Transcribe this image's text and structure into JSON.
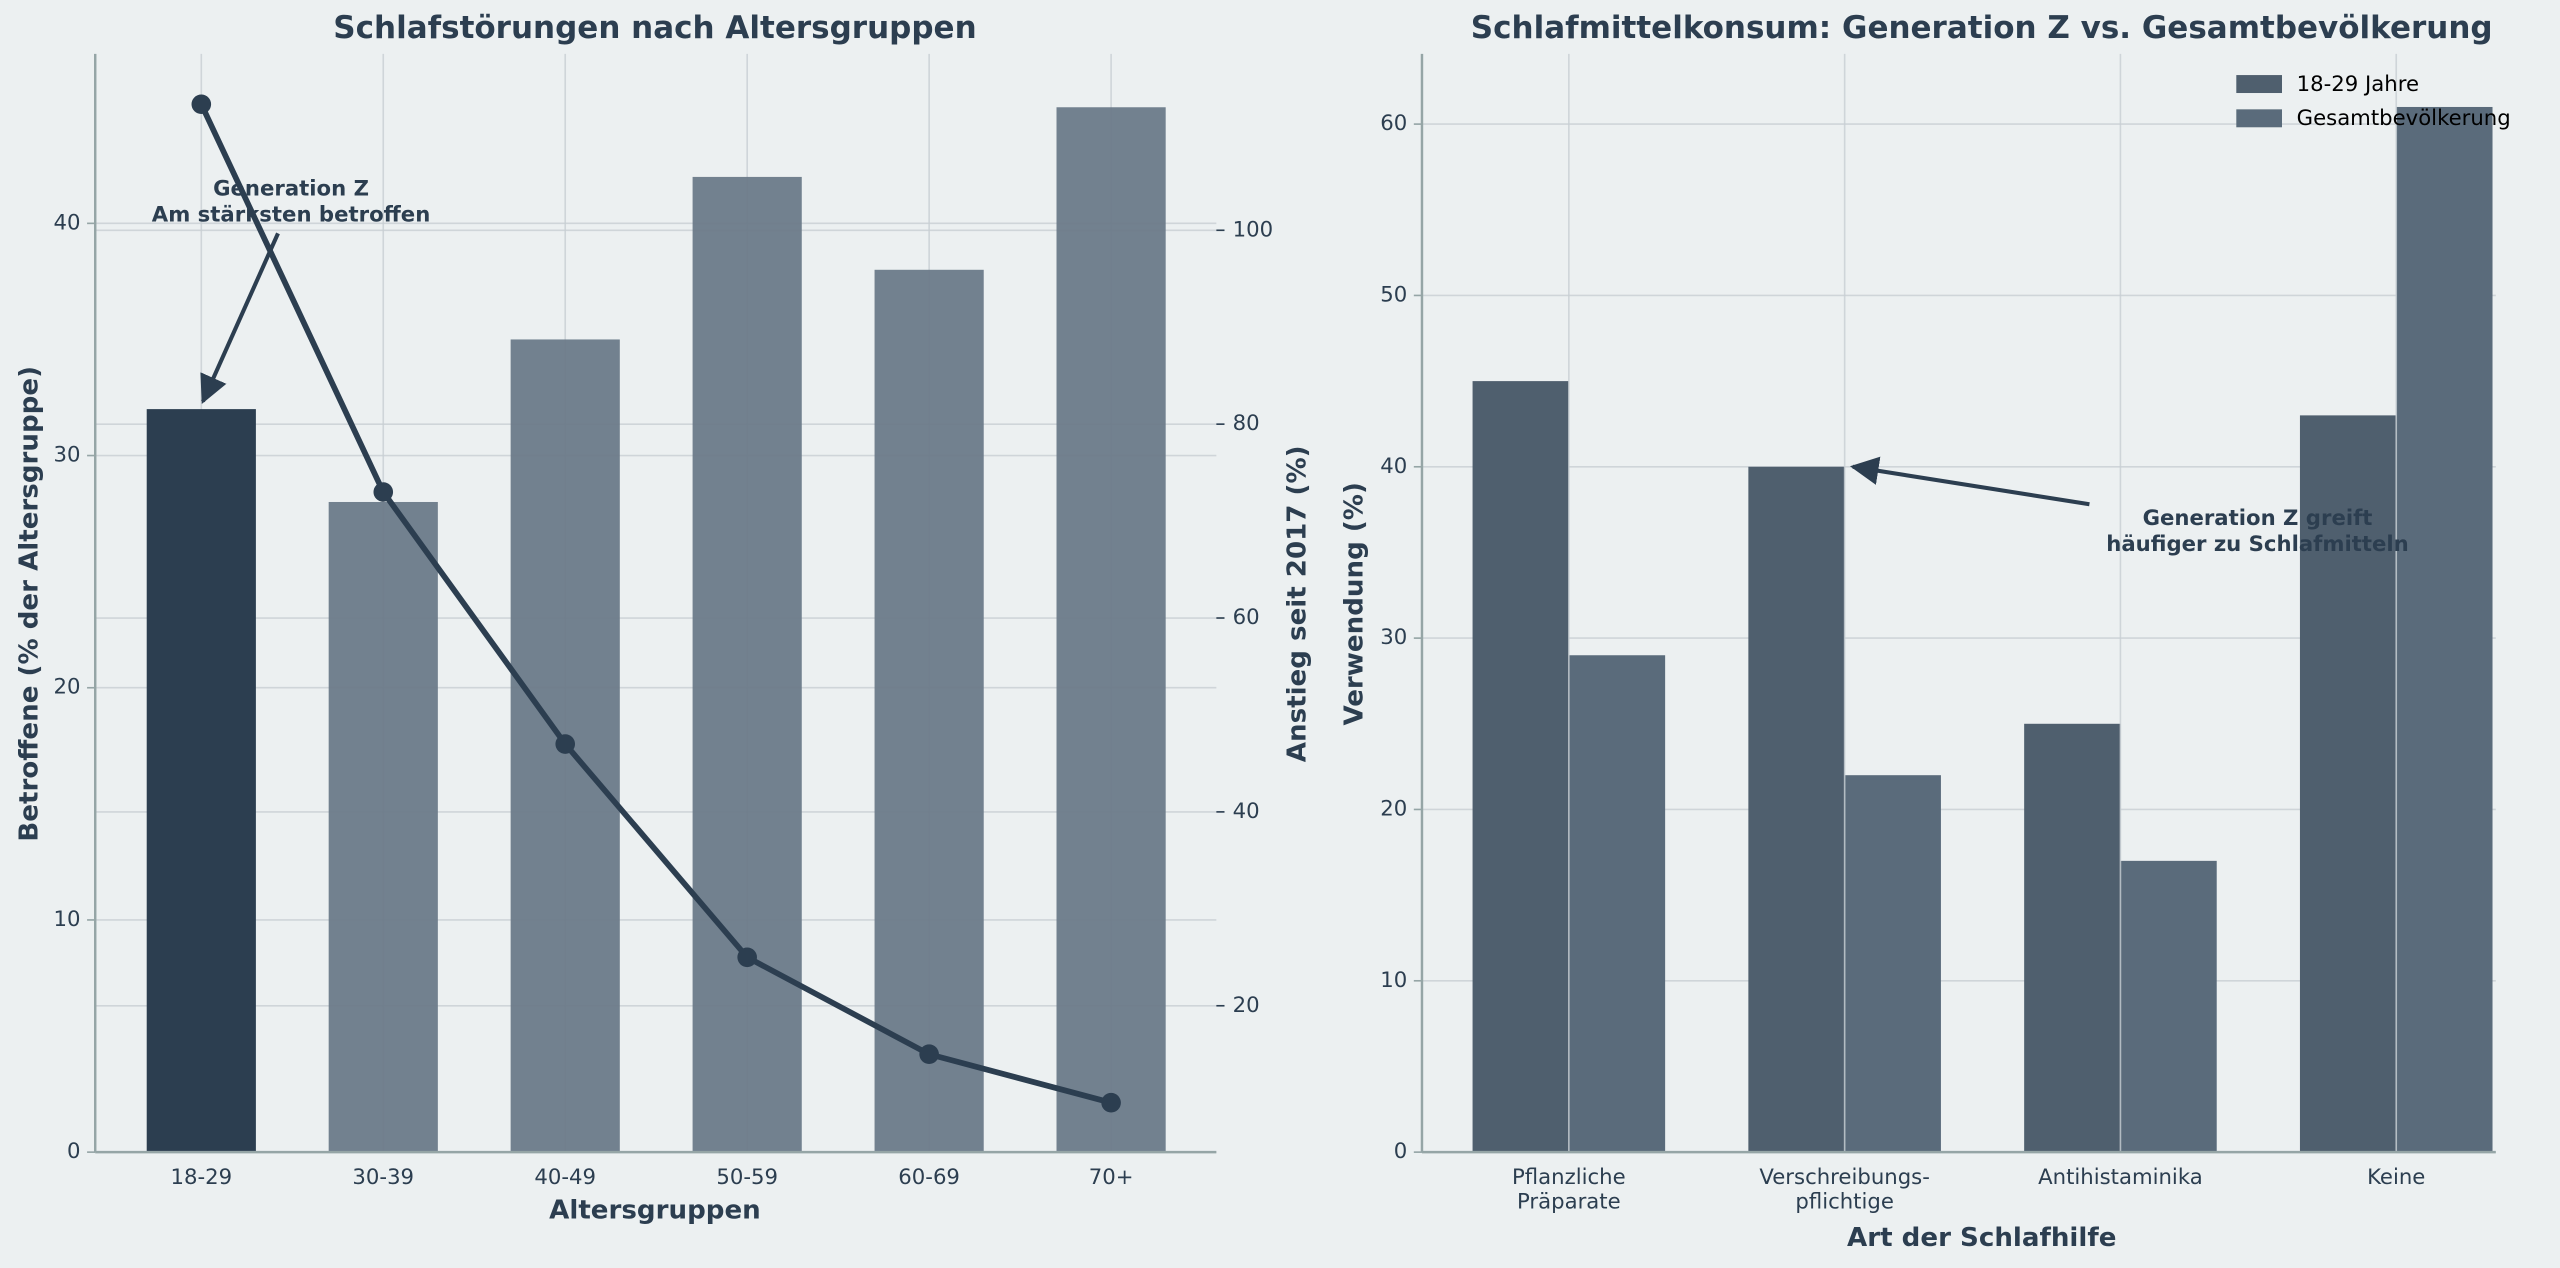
{
  "chart_data": [
    {
      "type": "bar",
      "title": "Schlafstörungen nach Altersgruppen",
      "xlabel": "Altersgruppen",
      "ylabel": "Betroffene (% der Altersgruppe)",
      "y2label": "Anstieg seit 2017 (%)",
      "categories": [
        "18-29",
        "30-39",
        "40-49",
        "50-59",
        "60-69",
        "70+"
      ],
      "series": [
        {
          "name": "Betroffene",
          "type": "bar",
          "colors": [
            "#2c3e50",
            "#6c7a89",
            "#6c7a89",
            "#6c7a89",
            "#6c7a89",
            "#6c7a89"
          ],
          "values": [
            32,
            28,
            35,
            42,
            38,
            45
          ]
        },
        {
          "name": "Anstieg",
          "type": "line",
          "axis": "y2",
          "color": "#2c3e50",
          "values": [
            113,
            73,
            47,
            25,
            15,
            10
          ]
        }
      ],
      "ylim": [
        0,
        47.3
      ],
      "yticks": [
        0,
        10,
        20,
        30,
        40
      ],
      "y2lim": [
        4.9,
        118.2
      ],
      "y2ticks": [
        20,
        40,
        60,
        80,
        100
      ],
      "grid": true,
      "annotation": [
        "Generation Z",
        "Am stärksten betroffen"
      ]
    },
    {
      "type": "grouped-bar",
      "title": "Schlafmittelkonsum: Generation Z vs. Gesamtbevölkerung",
      "xlabel": "Art der Schlafhilfe",
      "ylabel": "Verwendung (%)",
      "categories": [
        "Pflanzliche\nPräparate",
        "Verschreibungs-\npflichtige",
        "Antihistaminika",
        "Keine"
      ],
      "series": [
        {
          "name": "18-29 Jahre",
          "color": "#4f5f6e",
          "values": [
            45,
            40,
            25,
            43
          ]
        },
        {
          "name": "Gesamtbevölkerung",
          "color": "#5a6b7b",
          "values": [
            29,
            22,
            17,
            61
          ]
        }
      ],
      "ylim": [
        0,
        64.1
      ],
      "yticks": [
        0,
        10,
        20,
        30,
        40,
        50,
        60
      ],
      "grid": true,
      "legend": "upper right",
      "annotation": [
        "Generation Z greift",
        "häufiger zu Schlafmitteln"
      ]
    }
  ]
}
